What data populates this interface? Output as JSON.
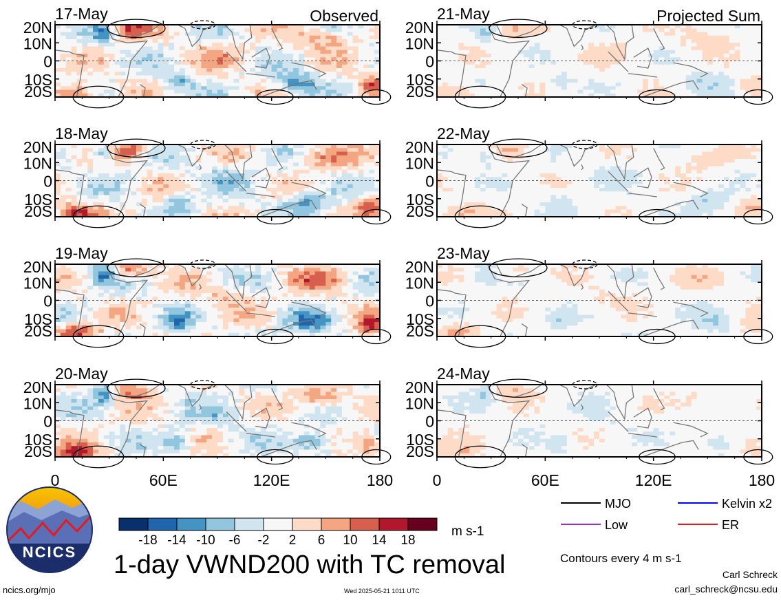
{
  "header": {
    "left_label": "Observed",
    "right_label": "Projected Sum"
  },
  "panels_left": [
    "17-May",
    "18-May",
    "19-May",
    "20-May"
  ],
  "panels_right": [
    "21-May",
    "22-May",
    "23-May",
    "24-May"
  ],
  "axes": {
    "lat_ticks": [
      "20N",
      "10N",
      "0",
      "10S",
      "20S"
    ],
    "lon_ticks": [
      "0",
      "60E",
      "120E",
      "180"
    ]
  },
  "colorbar": {
    "labels": [
      "-18",
      "-14",
      "-10",
      "-6",
      "-2",
      "2",
      "6",
      "10",
      "14",
      "18"
    ],
    "colors": [
      "#08306b",
      "#2166ac",
      "#4393c3",
      "#92c5de",
      "#d1e5f0",
      "#f7f7f7",
      "#fddbc7",
      "#f4a582",
      "#d6604d",
      "#b2182b",
      "#67001f"
    ],
    "units": "m s-1"
  },
  "legend": [
    {
      "label": "MJO",
      "color": "#000000"
    },
    {
      "label": "Kelvin x2",
      "color": "#0000ff"
    },
    {
      "label": "Low",
      "color": "#9933cc"
    },
    {
      "label": "ER",
      "color": "#e41a1c"
    }
  ],
  "main_title": "1-day VWND200 with TC removal",
  "contour_note": "Contours every 4 m s-1",
  "author": "Carl Schreck",
  "email": "carl_schreck@ncsu.edu",
  "site": "ncics.org/mjo",
  "timestamp": "Wed 2025-05-21 1011 UTC",
  "logo_text": "NCICS",
  "chart_data": {
    "type": "heatmap",
    "variable": "VWND200",
    "units": "m s-1",
    "x_range": [
      0,
      180
    ],
    "y_range": [
      -20,
      20
    ],
    "x_ticks": [
      "0",
      "60E",
      "120E",
      "180"
    ],
    "y_ticks": [
      "20N",
      "10N",
      "0",
      "10S",
      "20S"
    ],
    "contour_levels": [
      -18,
      -14,
      -10,
      -6,
      -2,
      2,
      6,
      10,
      14,
      18
    ],
    "panels": [
      "17-May",
      "18-May",
      "19-May",
      "20-May",
      "21-May",
      "22-May",
      "23-May",
      "24-May"
    ]
  }
}
